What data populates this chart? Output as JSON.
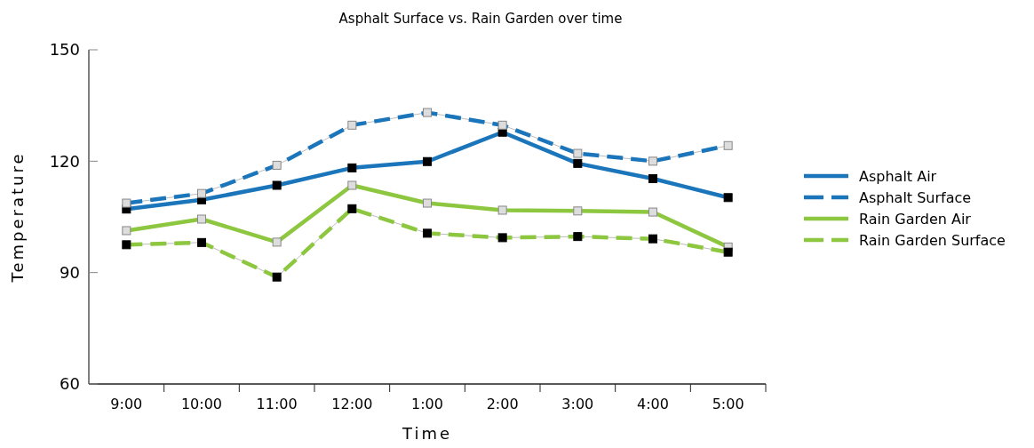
{
  "chart_data": {
    "type": "line",
    "title": "Asphalt Surface vs. Rain Garden over time",
    "xlabel": "Time",
    "ylabel": "Temperature",
    "categories": [
      "9:00",
      "10:00",
      "11:00",
      "12:00",
      "1:00",
      "2:00",
      "3:00",
      "4:00",
      "5:00"
    ],
    "series": [
      {
        "name": "Asphalt Air",
        "color": "#1b75bb",
        "line_style": "solid",
        "values": [
          107.1,
          109.6,
          113.5,
          118.2,
          119.9,
          127.8,
          119.4,
          115.3,
          110.2
        ]
      },
      {
        "name": "Asphalt Surface",
        "color": "#1b75bb",
        "line_style": "dashed",
        "values": [
          108.7,
          111.3,
          118.9,
          129.7,
          133.1,
          129.7,
          122.1,
          120.0,
          124.2
        ]
      },
      {
        "name": "Rain Garden Air",
        "color": "#8dc63f",
        "line_style": "solid",
        "values": [
          101.3,
          104.4,
          98.2,
          113.5,
          108.7,
          106.8,
          106.6,
          106.3,
          96.9
        ]
      },
      {
        "name": "Rain Garden Surface",
        "color": "#8dc63f",
        "line_style": "dashed",
        "values": [
          97.5,
          98.1,
          88.8,
          107.2,
          100.6,
          99.4,
          99.7,
          99.1,
          95.5
        ]
      }
    ],
    "ylim": [
      60,
      150
    ],
    "yticks": [
      60,
      90,
      120,
      150
    ],
    "grid": false,
    "legend": "right",
    "marker": "square"
  }
}
